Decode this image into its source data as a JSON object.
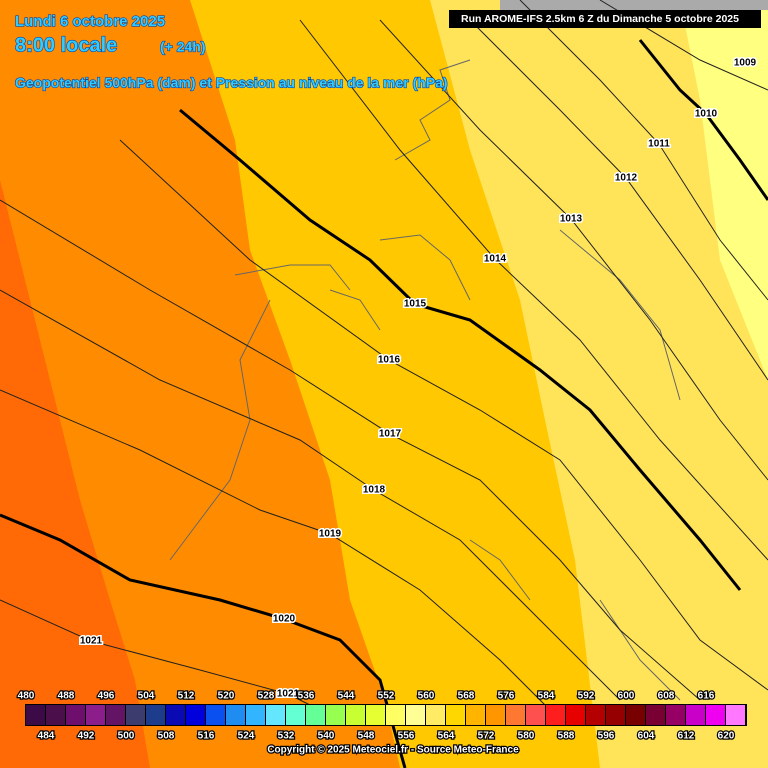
{
  "header": {
    "date": "Lundi 6 octobre 2025",
    "time": "8:00 locale",
    "lead": "(+ 24h)",
    "field": "Geopotentiel 500hPa (dam) et Pression au niveau de la mer (hPa)",
    "run": "Run AROME-IFS 2.5km 6 Z du Dimanche 5 octobre 2025"
  },
  "isobar_labels": [
    1009,
    1010,
    1011,
    1012,
    1013,
    1014,
    1015,
    1016,
    1017,
    1018,
    1019,
    1020,
    1021,
    1021
  ],
  "colorbar": {
    "top_labels": [
      480,
      488,
      496,
      504,
      512,
      520,
      528,
      536,
      544,
      552,
      560,
      568,
      576,
      584,
      592,
      600,
      608,
      616
    ],
    "bottom_labels": [
      484,
      492,
      500,
      508,
      516,
      524,
      532,
      540,
      548,
      556,
      564,
      572,
      580,
      588,
      596,
      604,
      612,
      620
    ],
    "colors": [
      "#3c0a46",
      "#4b0f4b",
      "#6e0f6e",
      "#8c1e8c",
      "#641464",
      "#3c3c6e",
      "#1e3c8c",
      "#0a0ab4",
      "#0000dc",
      "#0a50f0",
      "#1e8cf0",
      "#32b4ff",
      "#64e6ff",
      "#64ffd2",
      "#64ff96",
      "#96ff50",
      "#c8ff32",
      "#e6ff32",
      "#ffff64",
      "#ffff96",
      "#ffeb64",
      "#ffd700",
      "#ffb400",
      "#ff9600",
      "#ff7832",
      "#ff5050",
      "#ff1e1e",
      "#e60000",
      "#b40000",
      "#960000",
      "#780000",
      "#780032",
      "#960064",
      "#c800c8",
      "#f000f0",
      "#ff78ff"
    ]
  },
  "copyright": "Copyright © 2025 Meteociel.fr - Source Meteo-France"
}
